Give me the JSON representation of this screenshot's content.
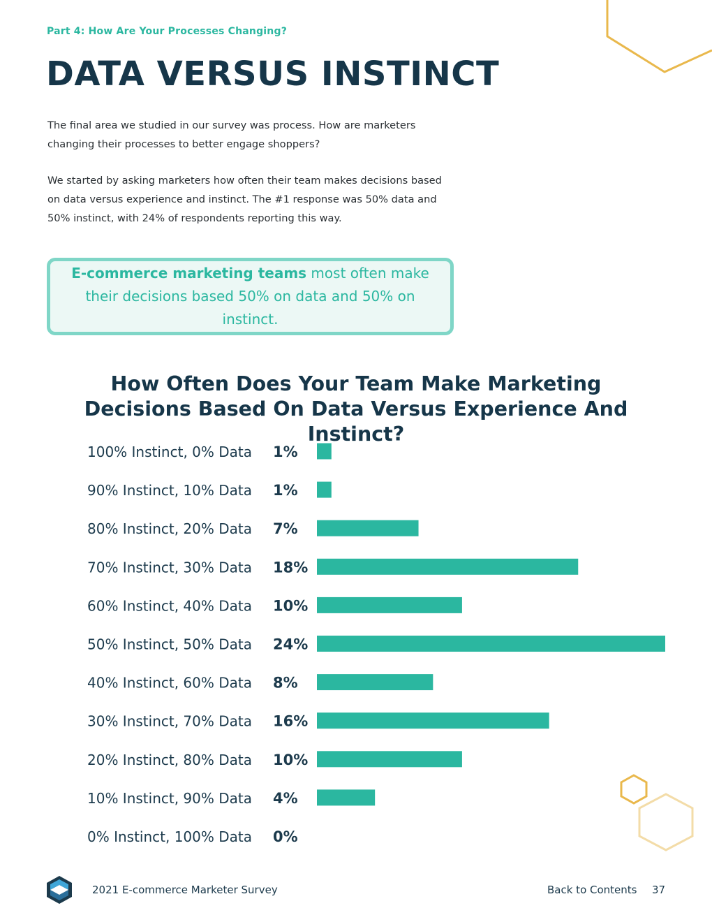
{
  "header": {
    "section": "Part 4: How Are Your Processes Changing?",
    "title": "DATA VERSUS INSTINCT"
  },
  "intro": {
    "p1": "The final area we studied in our survey was process. How are marketers changing their processes to better engage shoppers?",
    "p2": "We started by asking marketers how often their team makes decisions based on data versus experience and instinct. The #1 response was 50% data and 50% instinct, with 24% of respondents reporting this way."
  },
  "callout": {
    "bold": "E-commerce marketing teams",
    "rest": " most often make their decisions based 50% on data and 50% on instinct."
  },
  "chart_data": {
    "type": "bar",
    "orientation": "horizontal",
    "title": "How Often Does Your Team Make Marketing Decisions Based On Data Versus Experience And Instinct?",
    "categories": [
      "100% Instinct, 0% Data",
      "90% Instinct, 10% Data",
      "80% Instinct, 20% Data",
      "70% Instinct, 30% Data",
      "60% Instinct, 40% Data",
      "50% Instinct, 50% Data",
      "40% Instinct, 60% Data",
      "30% Instinct, 70% Data",
      "20% Instinct, 80% Data",
      "10% Instinct, 90% Data",
      "0% Instinct, 100% Data"
    ],
    "values": [
      1,
      1,
      7,
      18,
      10,
      24,
      8,
      16,
      10,
      4,
      0
    ],
    "value_labels": [
      "1%",
      "1%",
      "7%",
      "18%",
      "10%",
      "24%",
      "8%",
      "16%",
      "10%",
      "4%",
      "0%"
    ],
    "xlim": [
      0,
      24
    ],
    "grid": false,
    "bar_color": "#2bb7a0"
  },
  "footer": {
    "survey": "2021 E-commerce Marketer Survey",
    "back": "Back to Contents",
    "page": "37"
  },
  "icons": {
    "logo": "hexagon-logo-icon",
    "decor": "hexagon-outline-icon"
  }
}
